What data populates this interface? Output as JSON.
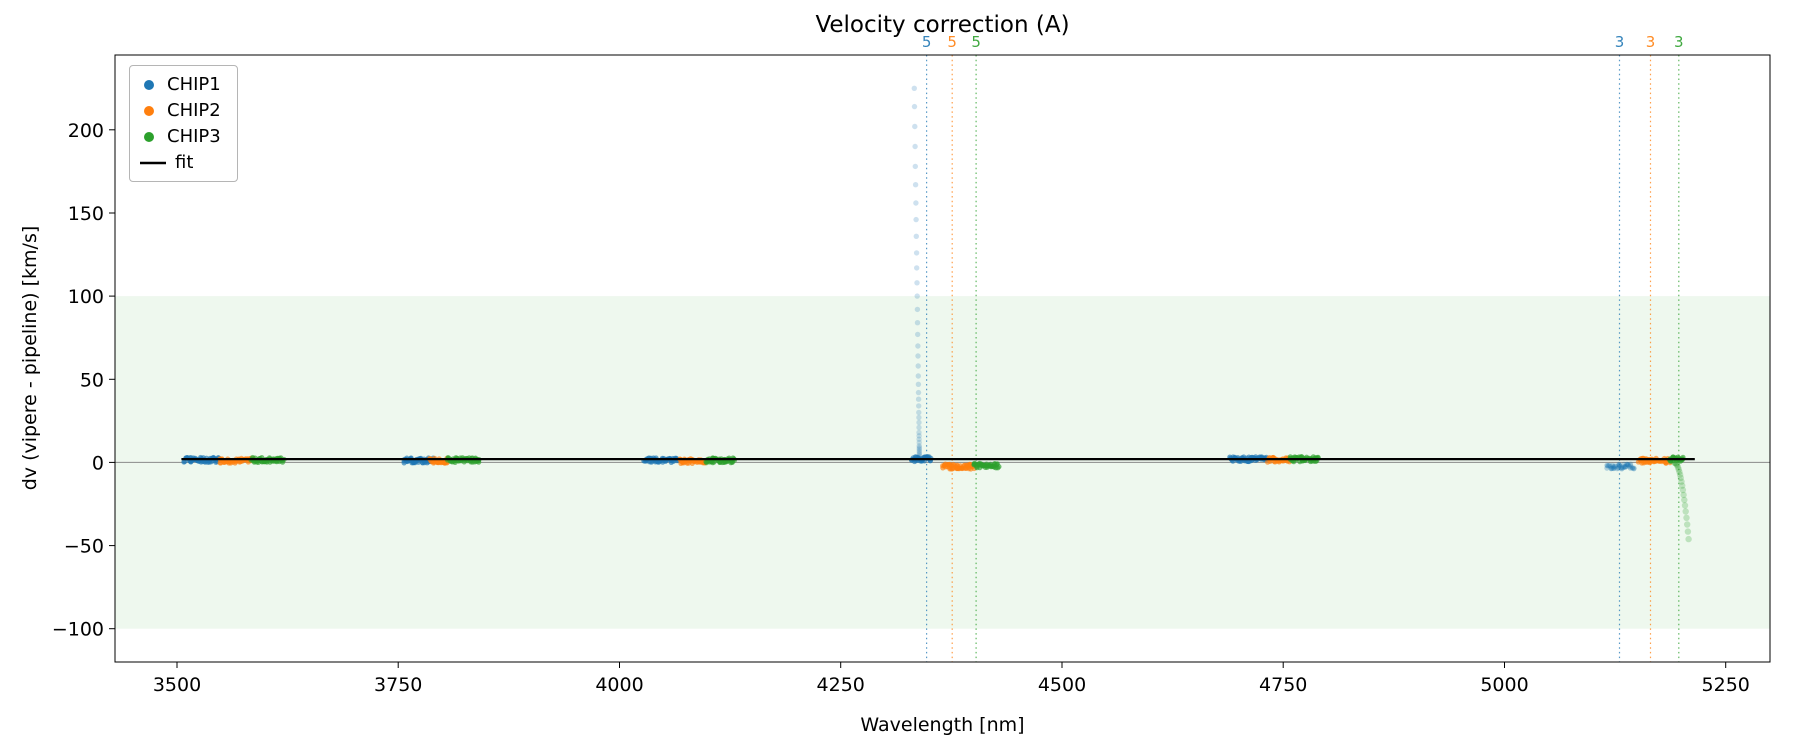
{
  "figure": {
    "background": "#ffffff"
  },
  "chart_data": {
    "type": "scatter",
    "title": "Velocity correction (A)",
    "xlabel": "Wavelength [nm]",
    "ylabel": "dv (vipere - pipeline) [km/s]",
    "xlim": [
      3430,
      5300
    ],
    "ylim": [
      -120,
      245
    ],
    "xticks": [
      3500,
      3750,
      4000,
      4250,
      4500,
      4750,
      5000,
      5250
    ],
    "yticks": [
      -100,
      -50,
      0,
      50,
      100,
      150,
      200
    ],
    "grid": false,
    "legend_position": "upper-left",
    "band": {
      "ymin": -100,
      "ymax": 100,
      "color": "#2ca02c",
      "alpha": 0.08
    },
    "zero_line": {
      "y": 0,
      "color": "#8a8a8a"
    },
    "fit_line": {
      "x0": 3505,
      "x1": 5215,
      "y": 2,
      "color": "#000000",
      "label": "fit"
    },
    "vlines": [
      {
        "x": 4347,
        "color": "#1f77b4",
        "label": "5"
      },
      {
        "x": 4376,
        "color": "#ff7f0e",
        "label": "5"
      },
      {
        "x": 4403,
        "color": "#2ca02c",
        "label": "5"
      },
      {
        "x": 5130,
        "color": "#1f77b4",
        "label": "3"
      },
      {
        "x": 5165,
        "color": "#ff7f0e",
        "label": "3"
      },
      {
        "x": 5197,
        "color": "#2ca02c",
        "label": "3"
      }
    ],
    "legend": [
      {
        "label": "CHIP1",
        "color": "#1f77b4",
        "marker": "dot"
      },
      {
        "label": "CHIP2",
        "color": "#ff7f0e",
        "marker": "dot"
      },
      {
        "label": "CHIP3",
        "color": "#2ca02c",
        "marker": "dot"
      },
      {
        "label": "fit",
        "color": "#000000",
        "marker": "line"
      }
    ],
    "series": [
      {
        "name": "CHIP1",
        "color": "#1f77b4",
        "clusters": [
          {
            "x0": 3508,
            "x1": 3548,
            "y": 1.5
          },
          {
            "x0": 3756,
            "x1": 3790,
            "y": 1.2
          },
          {
            "x0": 4028,
            "x1": 4066,
            "y": 1.5
          },
          {
            "x0": 4330,
            "x1": 4352,
            "y": 2.0
          },
          {
            "x0": 4690,
            "x1": 4732,
            "y": 2.0
          },
          {
            "x0": 5116,
            "x1": 5146,
            "y": -2.5,
            "alpha": 0.3
          }
        ],
        "extra_alpha": 0.22,
        "extra_radius": 2.7,
        "extra_points": [
          [
            4338.9,
            3
          ],
          [
            4338.9,
            4
          ],
          [
            4338.9,
            5
          ],
          [
            4338.8,
            6
          ],
          [
            4338.8,
            7
          ],
          [
            4338.8,
            8
          ],
          [
            4338.8,
            9
          ],
          [
            4338.7,
            10
          ],
          [
            4338.7,
            12
          ],
          [
            4338.6,
            14
          ],
          [
            4338.6,
            16
          ],
          [
            4338.5,
            18
          ],
          [
            4338.4,
            21
          ],
          [
            4338.4,
            24
          ],
          [
            4338.3,
            27
          ],
          [
            4338.2,
            30
          ],
          [
            4338.1,
            34
          ],
          [
            4338.0,
            38
          ],
          [
            4337.9,
            42
          ],
          [
            4337.8,
            47
          ],
          [
            4337.6,
            52
          ],
          [
            4337.5,
            58
          ],
          [
            4337.3,
            64
          ],
          [
            4337.2,
            70
          ],
          [
            4337.0,
            77
          ],
          [
            4336.8,
            84
          ],
          [
            4336.6,
            92
          ],
          [
            4336.4,
            100
          ],
          [
            4336.2,
            108
          ],
          [
            4335.9,
            117
          ],
          [
            4335.7,
            126
          ],
          [
            4335.4,
            136
          ],
          [
            4335.2,
            146
          ],
          [
            4334.9,
            156
          ],
          [
            4334.6,
            167
          ],
          [
            4334.3,
            178
          ],
          [
            4334.0,
            190
          ],
          [
            4333.7,
            202
          ],
          [
            4333.4,
            214
          ],
          [
            4333.1,
            225
          ]
        ]
      },
      {
        "name": "CHIP2",
        "color": "#ff7f0e",
        "clusters": [
          {
            "x0": 3548,
            "x1": 3586,
            "y": 1.0
          },
          {
            "x0": 3786,
            "x1": 3806,
            "y": 1.0
          },
          {
            "x0": 4068,
            "x1": 4096,
            "y": 0.8
          },
          {
            "x0": 4365,
            "x1": 4400,
            "y": -2.5
          },
          {
            "x0": 4733,
            "x1": 4757,
            "y": 1.5
          },
          {
            "x0": 5152,
            "x1": 5186,
            "y": 1.0
          }
        ],
        "extra_alpha": 0.25,
        "extra_radius": 2.7,
        "extra_points": []
      },
      {
        "name": "CHIP3",
        "color": "#2ca02c",
        "clusters": [
          {
            "x0": 3584,
            "x1": 3620,
            "y": 1.5
          },
          {
            "x0": 3806,
            "x1": 3842,
            "y": 1.5
          },
          {
            "x0": 4098,
            "x1": 4130,
            "y": 1.2
          },
          {
            "x0": 4400,
            "x1": 4428,
            "y": -2.0
          },
          {
            "x0": 4757,
            "x1": 4790,
            "y": 2.0
          },
          {
            "x0": 5186,
            "x1": 5202,
            "y": 2.0
          }
        ],
        "extra_alpha": 0.25,
        "extra_radius": 3.2,
        "extra_points": [
          [
            5192.0,
            -0.1
          ],
          [
            5192.8,
            -0.2
          ],
          [
            5193.6,
            -0.5
          ],
          [
            5194.4,
            -1.0
          ],
          [
            5195.2,
            -1.8
          ],
          [
            5196.0,
            -2.9
          ],
          [
            5196.8,
            -4.2
          ],
          [
            5197.6,
            -5.7
          ],
          [
            5198.4,
            -7.4
          ],
          [
            5199.2,
            -9.3
          ],
          [
            5200.0,
            -11.5
          ],
          [
            5200.8,
            -13.9
          ],
          [
            5201.6,
            -16.6
          ],
          [
            5202.4,
            -19.5
          ],
          [
            5203.2,
            -22.6
          ],
          [
            5204.0,
            -25.9
          ],
          [
            5204.8,
            -29.5
          ],
          [
            5205.6,
            -33.3
          ],
          [
            5206.4,
            -37.3
          ],
          [
            5207.2,
            -41.6
          ],
          [
            5208.0,
            -46.1
          ]
        ]
      }
    ]
  }
}
